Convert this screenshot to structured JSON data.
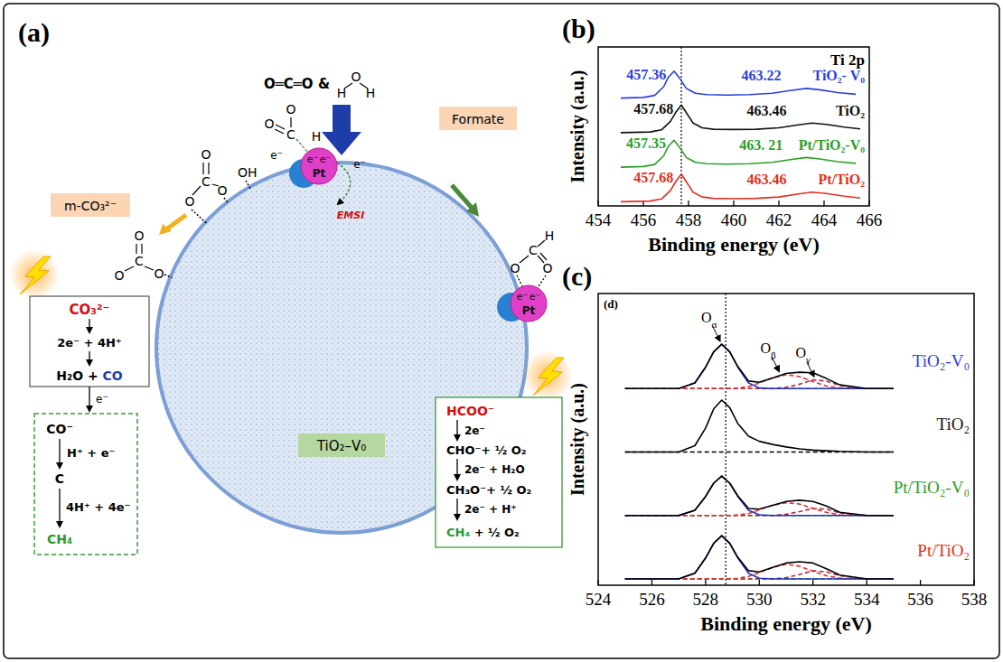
{
  "diagram": {
    "panel_label": "(a)",
    "reactants": {
      "co2": "O═C═O",
      "joiner": "&",
      "water": [
        "H",
        "O",
        "H"
      ]
    },
    "support_label": "TiO₂–V₀",
    "carbonate_label": "m-CO₃²⁻",
    "formate_label": "Formate",
    "upper_carbonate": [
      "O",
      "C",
      "O",
      "O"
    ],
    "hydroxyl": "OH",
    "lower_carbonate": [
      "O",
      "C",
      "O",
      "O"
    ],
    "co2_on_pt": [
      "O",
      "C",
      "O",
      "H"
    ],
    "formate_on_pt": [
      "O",
      "C",
      "H",
      "O"
    ],
    "pt_label": "Pt",
    "pt_electrons": [
      "e⁻",
      "e⁻"
    ],
    "transfer_electron": "e⁻",
    "interface_label": "EMSI",
    "carbonate_pathway": {
      "start": "CO₃²⁻",
      "step": "2e⁻ + 4H⁺",
      "product": [
        "H₂O + ",
        "CO"
      ],
      "transfer": "e⁻",
      "species": [
        "CO⁻",
        "C",
        "CH₄"
      ],
      "steps": [
        "H⁺ + e⁻",
        "4H⁺ + 4e⁻"
      ]
    },
    "formate_pathway": {
      "start": "HCOO⁻",
      "species": [
        "CHO⁻+ ½ O₂",
        "CH₃O⁻+ ½ O₂",
        "CH₄"
      ],
      "tail": " + ½ O₂",
      "steps": [
        "2e⁻",
        "2e⁻ + H₂O",
        "2e⁻ + H⁺"
      ]
    }
  },
  "chart_data": [
    {
      "type": "line",
      "panel_label": "(b)",
      "annotation": "Ti 2p",
      "xlabel": "Binding energy (eV)",
      "ylabel": "Intensity (a.u.)",
      "xlim": [
        454,
        466
      ],
      "xticks": [
        454,
        456,
        458,
        460,
        462,
        464,
        466
      ],
      "ylim": [
        -0.1,
        4.5
      ],
      "tick_labels": "x",
      "reference_x": 457.68,
      "series": [
        {
          "name": "TiO₂- V₀",
          "color": "#2b3fe0",
          "x": [
            455,
            456,
            456.5,
            456.9,
            457.1,
            457.36,
            457.6,
            457.9,
            458.3,
            458.8,
            459.7,
            460.7,
            461.7,
            462.5,
            463.22,
            463.8,
            464.6,
            465.4
          ],
          "values": [
            3.02,
            3.04,
            3.1,
            3.35,
            3.62,
            3.8,
            3.6,
            3.3,
            3.16,
            3.12,
            3.11,
            3.12,
            3.16,
            3.24,
            3.3,
            3.26,
            3.18,
            3.13
          ],
          "peaks": [
            457.36,
            463.22
          ],
          "peak_labels": [
            "457.36",
            "463.22"
          ]
        },
        {
          "name": "TiO₂",
          "color": "#111111",
          "x": [
            455,
            456.3,
            456.8,
            457.2,
            457.45,
            457.68,
            457.9,
            458.2,
            458.6,
            459.1,
            460,
            461,
            462,
            462.8,
            463.46,
            464.1,
            464.9,
            465.6
          ],
          "values": [
            2.02,
            2.04,
            2.1,
            2.35,
            2.62,
            2.82,
            2.6,
            2.3,
            2.16,
            2.12,
            2.11,
            2.12,
            2.16,
            2.24,
            2.3,
            2.26,
            2.18,
            2.13
          ],
          "peaks": [
            457.68,
            463.46
          ],
          "peak_labels": [
            "457.68",
            "463.46"
          ]
        },
        {
          "name": "Pt/TiO₂-V₀",
          "color": "#2aa02a",
          "x": [
            455,
            456,
            456.5,
            456.9,
            457.1,
            457.35,
            457.6,
            457.9,
            458.3,
            458.8,
            459.7,
            460.7,
            461.7,
            462.5,
            463.21,
            463.8,
            464.6,
            465.4
          ],
          "values": [
            1.02,
            1.04,
            1.1,
            1.35,
            1.62,
            1.8,
            1.6,
            1.3,
            1.16,
            1.12,
            1.11,
            1.12,
            1.16,
            1.24,
            1.3,
            1.26,
            1.18,
            1.13
          ],
          "peaks": [
            457.35,
            463.21
          ],
          "peak_labels": [
            "457.35",
            "463. 21"
          ]
        },
        {
          "name": "Pt/TiO₂",
          "color": "#e03020",
          "x": [
            455,
            456.3,
            456.8,
            457.2,
            457.45,
            457.68,
            457.9,
            458.2,
            458.6,
            459.1,
            460,
            461,
            462,
            462.8,
            463.46,
            464.1,
            464.9,
            465.6
          ],
          "values": [
            0.02,
            0.04,
            0.1,
            0.35,
            0.62,
            0.82,
            0.6,
            0.3,
            0.16,
            0.12,
            0.11,
            0.12,
            0.16,
            0.24,
            0.3,
            0.26,
            0.18,
            0.13
          ],
          "peaks": [
            457.68,
            463.46
          ],
          "peak_labels": [
            "457.68",
            "463.46"
          ]
        }
      ]
    },
    {
      "type": "line",
      "panel_label": "(c)",
      "inset_label": "(d)",
      "xlabel": "Binding energy (eV)",
      "ylabel": "Intensity (a.u.)",
      "xlim": [
        524,
        538
      ],
      "xticks": [
        524,
        526,
        528,
        530,
        532,
        534,
        536,
        538
      ],
      "ylim": [
        -0.1,
        4.5
      ],
      "tick_labels": "x",
      "reference_x": 528.75,
      "x": [
        525,
        526,
        527,
        527.6,
        528,
        528.3,
        528.6,
        528.9,
        529.2,
        529.6,
        530,
        530.5,
        531,
        531.5,
        532,
        532.5,
        533,
        534,
        535
      ],
      "series": [
        {
          "color": "#30a030",
          "line_style": "dashed",
          "values": [
            3,
            3,
            3,
            3,
            3,
            3,
            3,
            3,
            3,
            3,
            3,
            3,
            3,
            3,
            3,
            3,
            3,
            3,
            3
          ]
        },
        {
          "color": "#b03040",
          "line_style": "dashed",
          "values": [
            3,
            3,
            3,
            3,
            3,
            3,
            3,
            3,
            3,
            3,
            3,
            3,
            3.02,
            3.07,
            3.14,
            3.12,
            3.05,
            3,
            3
          ]
        },
        {
          "color": "#e03030",
          "line_style": "dashed",
          "values": [
            3,
            3,
            3,
            3,
            3,
            3,
            3,
            3,
            3.01,
            3.03,
            3.09,
            3.17,
            3.22,
            3.19,
            3.11,
            3.04,
            3.01,
            3,
            3
          ]
        },
        {
          "color": "#2030c0",
          "line_style": "solid",
          "values": [
            3,
            3,
            3,
            3.09,
            3.34,
            3.58,
            3.7,
            3.58,
            3.34,
            3.09,
            3.01,
            3,
            3,
            3,
            3,
            3,
            3,
            3,
            3
          ]
        },
        {
          "color": "#000000",
          "line_style": "solid",
          "values": [
            3,
            3,
            3,
            3.09,
            3.34,
            3.58,
            3.7,
            3.58,
            3.35,
            3.12,
            3.1,
            3.17,
            3.24,
            3.26,
            3.25,
            3.16,
            3.06,
            3,
            3
          ]
        },
        {
          "color": "#000000",
          "line_style": "dashed",
          "values": [
            2,
            2,
            2,
            2,
            2,
            2,
            2,
            2,
            2,
            2,
            2,
            2,
            2,
            2,
            2,
            2,
            2,
            2,
            2
          ]
        },
        {
          "color": "#000000",
          "line_style": "solid",
          "values": [
            2,
            2,
            2,
            2.1,
            2.38,
            2.68,
            2.82,
            2.7,
            2.45,
            2.25,
            2.17,
            2.12,
            2.08,
            2.05,
            2.03,
            2.02,
            2.01,
            2,
            2
          ]
        },
        {
          "color": "#30a030",
          "line_style": "dashed",
          "values": [
            1,
            1,
            1,
            1,
            1,
            1,
            1,
            1,
            1,
            1,
            1,
            1,
            1,
            1,
            1,
            1,
            1,
            1,
            1
          ]
        },
        {
          "color": "#b03040",
          "line_style": "dashed",
          "values": [
            1,
            1,
            1,
            1,
            1,
            1,
            1,
            1,
            1,
            1,
            1,
            1,
            1.02,
            1.06,
            1.11,
            1.1,
            1.04,
            1,
            1
          ]
        },
        {
          "color": "#e03030",
          "line_style": "dashed",
          "values": [
            1,
            1,
            1,
            1,
            1,
            1,
            1,
            1,
            1.01,
            1.03,
            1.09,
            1.16,
            1.2,
            1.18,
            1.11,
            1.05,
            1.01,
            1,
            1
          ]
        },
        {
          "color": "#2030c0",
          "line_style": "solid",
          "values": [
            1,
            1,
            1,
            1.08,
            1.3,
            1.51,
            1.62,
            1.51,
            1.3,
            1.08,
            1.01,
            1,
            1,
            1,
            1,
            1,
            1,
            1,
            1
          ]
        },
        {
          "color": "#000000",
          "line_style": "solid",
          "values": [
            1,
            1,
            1,
            1.08,
            1.3,
            1.51,
            1.62,
            1.51,
            1.31,
            1.11,
            1.1,
            1.16,
            1.22,
            1.24,
            1.22,
            1.15,
            1.05,
            1,
            1
          ]
        },
        {
          "color": "#30a030",
          "line_style": "dashed",
          "values": [
            0,
            0,
            0,
            0,
            0,
            0,
            0,
            0,
            0,
            0,
            0,
            0,
            0,
            0,
            0,
            0,
            0,
            0,
            0
          ]
        },
        {
          "color": "#b03040",
          "line_style": "dashed",
          "values": [
            0,
            0,
            0,
            0,
            0,
            0,
            0,
            0,
            0,
            0,
            0,
            0,
            0.02,
            0.07,
            0.13,
            0.11,
            0.05,
            0,
            0
          ]
        },
        {
          "color": "#e03030",
          "line_style": "dashed",
          "values": [
            0,
            0,
            0,
            0,
            0,
            0,
            0,
            0,
            0.01,
            0.04,
            0.1,
            0.18,
            0.23,
            0.2,
            0.12,
            0.05,
            0.01,
            0,
            0
          ]
        },
        {
          "color": "#2030c0",
          "line_style": "solid",
          "values": [
            0,
            0,
            0,
            0.09,
            0.33,
            0.56,
            0.68,
            0.56,
            0.33,
            0.09,
            0.01,
            0,
            0,
            0,
            0,
            0,
            0,
            0,
            0
          ]
        },
        {
          "color": "#000000",
          "line_style": "solid",
          "values": [
            0,
            0,
            0,
            0.09,
            0.33,
            0.56,
            0.68,
            0.56,
            0.34,
            0.13,
            0.11,
            0.18,
            0.25,
            0.27,
            0.25,
            0.16,
            0.06,
            0,
            0
          ]
        }
      ],
      "annotations": [
        {
          "text": "Oα",
          "x": 528.6,
          "series": 3
        },
        {
          "text": "Oβ",
          "x": 530.8,
          "series": 2
        },
        {
          "text": "Oγ",
          "x": 532.1,
          "series": 1
        }
      ],
      "row_labels": [
        {
          "text": "TiO₂-V₀",
          "color": "#2f3fd8",
          "series": 4
        },
        {
          "text": "TiO₂",
          "color": "#111111",
          "series": 6
        },
        {
          "text": "Pt/TiO₂-V₀",
          "color": "#2aa02a",
          "series": 11
        },
        {
          "text": "Pt/TiO₂",
          "color": "#e03020",
          "series": 16
        }
      ]
    }
  ]
}
